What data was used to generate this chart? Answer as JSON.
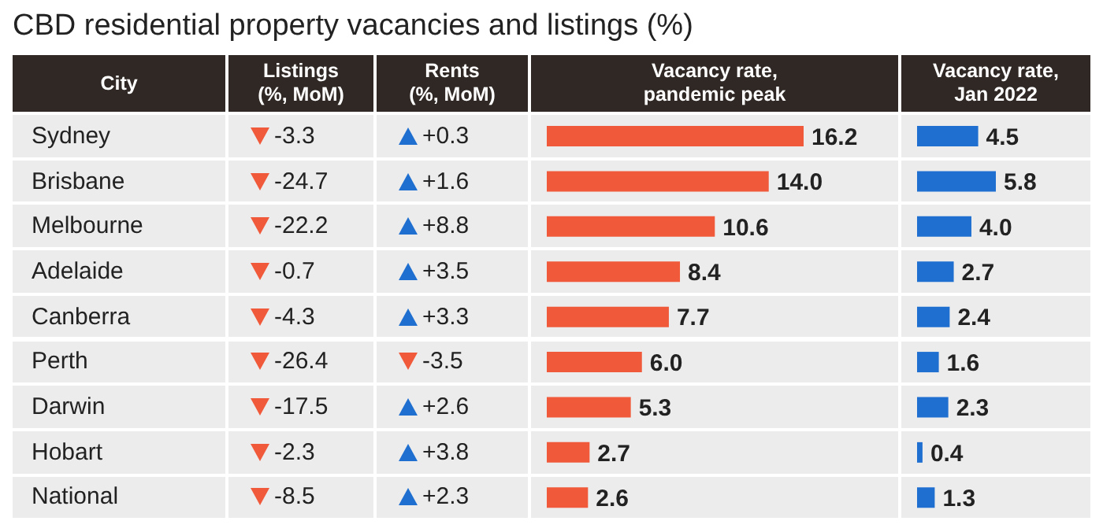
{
  "chart_data": [
    {
      "type": "other",
      "title": "CBD residential property vacancies and listings (%)",
      "ylabel": "City",
      "categories": [
        "Sydney",
        "Brisbane",
        "Melbourne",
        "Adelaide",
        "Canberra",
        "Perth",
        "Darwin",
        "Hobart",
        "National"
      ],
      "series": [
        {
          "name": "Listings\n(%, MoM)",
          "values": [
            -3.3,
            -24.7,
            -22.2,
            -0.7,
            -4.3,
            -26.4,
            -17.5,
            -2.3,
            -8.5
          ],
          "value_labels": [
            "-3.3",
            "-24.7",
            "-22.2",
            "-0.7",
            "-4.3",
            "-26.4",
            "-17.5",
            "-2.3",
            "-8.5"
          ]
        },
        {
          "name": "Rents\n(%, MoM)",
          "values": [
            0.3,
            1.6,
            8.8,
            3.5,
            3.3,
            -3.5,
            2.6,
            3.8,
            2.3
          ],
          "value_labels": [
            "+0.3",
            "+1.6",
            "+8.8",
            "+3.5",
            "+3.3",
            "-3.5",
            "+2.6",
            "+3.8",
            "+2.3"
          ]
        }
      ]
    },
    {
      "type": "bar",
      "orientation": "horizontal",
      "xlabel": "Vacancy rate,\npandemic peak",
      "categories": [
        null,
        null,
        null,
        null,
        null,
        null,
        null,
        null,
        null
      ],
      "tick_labels": false,
      "color": "#f05a3a",
      "values": [
        16.2,
        14.0,
        10.6,
        8.4,
        7.7,
        6.0,
        5.3,
        2.7,
        2.6
      ],
      "value_labels": [
        "16.2",
        "14.0",
        "10.6",
        "8.4",
        "7.7",
        "6.0",
        "5.3",
        "2.7",
        "2.6"
      ]
    },
    {
      "type": "bar",
      "orientation": "horizontal",
      "xlabel": "Vacancy rate,\nJan 2022",
      "categories": [
        null,
        null,
        null,
        null,
        null,
        null,
        null,
        null,
        null
      ],
      "tick_labels": false,
      "color": "#1f6fd1",
      "values": [
        4.5,
        5.8,
        4.0,
        2.7,
        2.4,
        1.6,
        2.3,
        0.4,
        1.3
      ],
      "value_labels": [
        "4.5",
        "5.8",
        "4.0",
        "2.7",
        "2.4",
        "1.6",
        "2.3",
        "0.4",
        "1.3"
      ]
    }
  ]
}
